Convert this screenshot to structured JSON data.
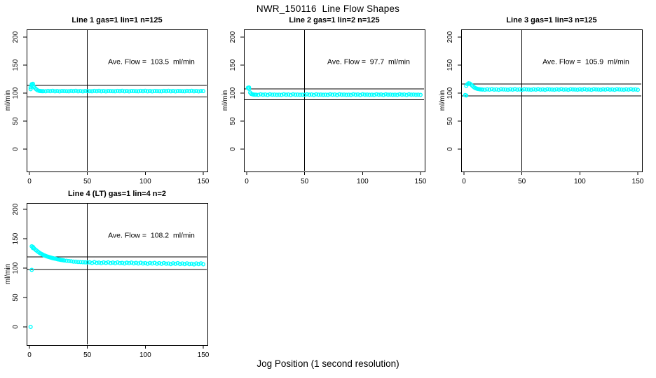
{
  "figure": {
    "title": "NWR_150116  Line Flow Shapes",
    "xlabel": "Jog Position (1 second resolution)",
    "background_color": "#ffffff",
    "accent_color": "#00ffff",
    "line_color": "#000000"
  },
  "chart_data": [
    {
      "type": "scatter",
      "title": "Line 1 gas=1 lin=1 n=125",
      "ylabel": "ml/min",
      "annotation": "Ave. Flow =  103.5  ml/min",
      "ave_flow": 103.5,
      "x_ticks": [
        0,
        50,
        100,
        150
      ],
      "y_ticks": [
        0,
        50,
        100,
        150,
        200
      ],
      "xlim": [
        -2,
        154
      ],
      "ylim": [
        -40,
        214
      ],
      "grid": false,
      "legend": false,
      "ref_lines": {
        "vertical_x": 50,
        "upper": 113.9,
        "lower": 93.2
      },
      "transient": [
        [
          1,
          107
        ],
        [
          1,
          110.5
        ],
        [
          2,
          116
        ],
        [
          2,
          114
        ],
        [
          3,
          116.5
        ],
        [
          3,
          113
        ],
        [
          4,
          111
        ],
        [
          5,
          108.5
        ],
        [
          6,
          106.5
        ],
        [
          7,
          105
        ],
        [
          8,
          104.2
        ],
        [
          9,
          103.8
        ],
        [
          10,
          103.6
        ],
        [
          11,
          103.5
        ]
      ],
      "steady": {
        "x_start": 12,
        "x_step": 2,
        "y": [
          103.5,
          103.2,
          103.9,
          103.4,
          104.1,
          103.3,
          103.7,
          103.1,
          103.8,
          103.6,
          103.5,
          103.2,
          103.9,
          103.4,
          104.1,
          103.3,
          103.7,
          103.1,
          103.8,
          103.6,
          103.5,
          103.2,
          103.9,
          103.4,
          104.1,
          103.3,
          103.7,
          103.1,
          103.8,
          103.6,
          103.5,
          103.2,
          103.9,
          103.4,
          104.1,
          103.3,
          103.7,
          103.1,
          103.8,
          103.6,
          103.5,
          103.2,
          103.9,
          103.4,
          104.1,
          103.3,
          103.7,
          103.1,
          103.8,
          103.6,
          103.5,
          103.2,
          103.9,
          103.4,
          104.1,
          103.3,
          103.7,
          103.1,
          103.8,
          103.6,
          103.5,
          103.2,
          103.9,
          103.4,
          104.1,
          103.3,
          103.7,
          103.1,
          103.8,
          103.6
        ]
      },
      "outliers": []
    },
    {
      "type": "scatter",
      "title": "Line 2 gas=1 lin=2 n=125",
      "ylabel": "ml/min",
      "annotation": "Ave. Flow =  97.7  ml/min",
      "ave_flow": 97.7,
      "x_ticks": [
        0,
        50,
        100,
        150
      ],
      "y_ticks": [
        0,
        50,
        100,
        150,
        200
      ],
      "xlim": [
        -2,
        154
      ],
      "ylim": [
        -40,
        214
      ],
      "grid": false,
      "legend": false,
      "ref_lines": {
        "vertical_x": 50,
        "upper": 107.5,
        "lower": 87.9
      },
      "transient": [
        [
          1,
          109.5
        ],
        [
          2,
          110
        ],
        [
          2,
          107.5
        ],
        [
          3,
          101
        ],
        [
          4,
          98.5
        ],
        [
          5,
          97.8
        ],
        [
          6,
          97.4
        ],
        [
          7,
          97.2
        ]
      ],
      "steady": {
        "x_start": 8,
        "x_step": 2,
        "y": [
          97.3,
          96.9,
          97.7,
          97.1,
          97.5,
          96.8,
          97.8,
          97.2,
          97.4,
          97.0,
          97.3,
          96.9,
          97.7,
          97.1,
          97.5,
          96.8,
          97.8,
          97.2,
          97.4,
          97.0,
          97.3,
          96.9,
          97.7,
          97.1,
          97.5,
          96.8,
          97.8,
          97.2,
          97.4,
          97.0,
          97.3,
          96.9,
          97.7,
          97.1,
          97.5,
          96.8,
          97.8,
          97.2,
          97.4,
          97.0,
          97.3,
          96.9,
          97.7,
          97.1,
          97.5,
          96.8,
          97.8,
          97.2,
          97.4,
          97.0,
          97.3,
          96.9,
          97.7,
          97.1,
          97.5,
          96.8,
          97.8,
          97.2,
          97.4,
          97.0,
          97.3,
          96.9,
          97.7,
          97.1,
          97.5,
          96.8,
          97.8,
          97.2,
          97.4,
          97.0,
          97.3,
          96.9
        ]
      },
      "outliers": []
    },
    {
      "type": "scatter",
      "title": "Line 3 gas=1 lin=3 n=125",
      "ylabel": "ml/min",
      "annotation": "Ave. Flow =  105.9  ml/min",
      "ave_flow": 105.9,
      "x_ticks": [
        0,
        50,
        100,
        150
      ],
      "y_ticks": [
        0,
        50,
        100,
        150,
        200
      ],
      "xlim": [
        -2,
        154
      ],
      "ylim": [
        -40,
        214
      ],
      "grid": false,
      "legend": false,
      "ref_lines": {
        "vertical_x": 50,
        "upper": 116.5,
        "lower": 95.3
      },
      "transient": [
        [
          2,
          113
        ],
        [
          3,
          116
        ],
        [
          4,
          117.5
        ],
        [
          5,
          117
        ],
        [
          6,
          115.5
        ],
        [
          7,
          113.5
        ],
        [
          8,
          111.5
        ],
        [
          9,
          110
        ],
        [
          10,
          108.8
        ],
        [
          11,
          108
        ],
        [
          12,
          107.4
        ],
        [
          13,
          107
        ],
        [
          14,
          106.8
        ],
        [
          15,
          106.6
        ]
      ],
      "steady": {
        "x_start": 16,
        "x_step": 2,
        "y": [
          106.4,
          106.1,
          106.8,
          106.3,
          107.0,
          106.2,
          106.6,
          106.0,
          106.9,
          106.5,
          106.4,
          106.1,
          106.8,
          106.3,
          107.0,
          106.2,
          106.6,
          106.0,
          106.9,
          106.5,
          106.4,
          106.1,
          106.8,
          106.3,
          107.0,
          106.2,
          106.6,
          106.0,
          106.9,
          106.5,
          106.4,
          106.1,
          106.8,
          106.3,
          107.0,
          106.2,
          106.6,
          106.0,
          106.9,
          106.5,
          106.4,
          106.1,
          106.8,
          106.3,
          107.0,
          106.2,
          106.6,
          106.0,
          106.9,
          106.5,
          106.4,
          106.1,
          106.8,
          106.3,
          107.0,
          106.2,
          106.6,
          106.0,
          106.9,
          106.5,
          106.4,
          106.1,
          106.8,
          106.3,
          107.0,
          106.2,
          106.6,
          106.0
        ]
      },
      "outliers": [
        [
          1,
          96.5
        ],
        [
          2,
          95.8
        ]
      ]
    },
    {
      "type": "scatter",
      "title": "Line 4 (LT) gas=1 lin=4 n=2",
      "ylabel": "ml/min",
      "annotation": "Ave. Flow =  108.2  ml/min",
      "ave_flow": 108.2,
      "x_ticks": [
        0,
        50,
        100,
        150
      ],
      "y_ticks": [
        0,
        50,
        100,
        150,
        200
      ],
      "xlim": [
        -2,
        154
      ],
      "ylim": [
        -31,
        211
      ],
      "grid": false,
      "legend": false,
      "ref_lines": {
        "vertical_x": 50,
        "upper": 119.0,
        "lower": 97.4
      },
      "transient": [
        [
          2,
          137
        ],
        [
          3,
          136
        ],
        [
          3,
          134
        ],
        [
          4,
          133.5
        ],
        [
          5,
          131.5
        ],
        [
          6,
          130
        ],
        [
          7,
          128.5
        ],
        [
          8,
          127
        ],
        [
          9,
          125.5
        ],
        [
          10,
          124.5
        ],
        [
          11,
          123.4
        ],
        [
          12,
          122.4
        ],
        [
          13,
          121.5
        ],
        [
          14,
          120.7
        ],
        [
          15,
          120
        ],
        [
          16,
          119.3
        ],
        [
          17,
          118.7
        ],
        [
          18,
          118.1
        ],
        [
          19,
          117.6
        ],
        [
          20,
          117
        ],
        [
          21,
          116.6
        ],
        [
          22,
          116.1
        ],
        [
          23,
          115.7
        ],
        [
          24,
          115.2
        ],
        [
          25,
          114.8
        ],
        [
          26,
          114.4
        ],
        [
          27,
          114.1
        ],
        [
          28,
          113.7
        ],
        [
          29,
          113.4
        ],
        [
          30,
          113
        ],
        [
          32,
          112.5
        ],
        [
          34,
          112
        ],
        [
          36,
          111.5
        ],
        [
          38,
          111.1
        ],
        [
          40,
          110.8
        ],
        [
          42,
          110.5
        ],
        [
          44,
          110.2
        ],
        [
          46,
          110
        ],
        [
          48,
          109.8
        ],
        [
          50,
          109.6
        ]
      ],
      "steady": {
        "x_start": 52,
        "x_step": 2,
        "y": [
          109.9,
          108.8,
          110.1,
          108.9,
          109.4,
          108.4,
          109.7,
          108.8,
          109.9,
          108.5,
          109.4,
          108.3,
          109.6,
          108.4,
          108.9,
          107.9,
          109.2,
          108.3,
          109.4,
          108.0,
          108.9,
          107.8,
          109.1,
          107.9,
          108.4,
          107.4,
          108.7,
          107.8,
          108.9,
          107.5,
          108.4,
          107.3,
          108.6,
          107.4,
          107.9,
          106.9,
          108.2,
          107.3,
          108.4,
          107.0,
          107.9,
          106.8,
          108.1,
          106.9,
          107.4,
          106.4,
          107.8,
          106.8,
          108.0,
          106.5
        ]
      },
      "outliers": [
        [
          1,
          0
        ],
        [
          2,
          97
        ]
      ]
    }
  ]
}
